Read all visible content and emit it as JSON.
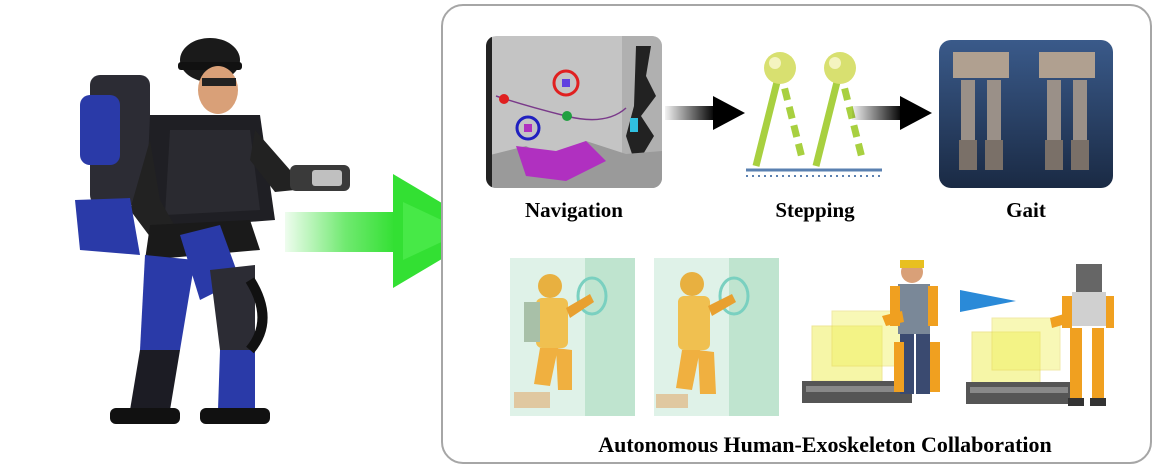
{
  "labels": {
    "navigation": "Navigation",
    "stepping": "Stepping",
    "gait": "Gait",
    "collaboration": "Autonomous Human-Exoskeleton Collaboration"
  },
  "colors": {
    "panel_border": "#a6a6a6",
    "big_arrow": "#33e033",
    "arrow_dark": "#000000",
    "stepping_leg": "#a8d040",
    "stepping_ball": "#d8e070",
    "exo_blue": "#2a3aa8",
    "exo_orange": "#f0a020",
    "collab_arrow": "#2a8ad8"
  },
  "icons": {
    "person": "exoskeleton-wearer-illustration",
    "nav_map": "occupancy-map-illustration",
    "gait": "robot-gait-illustration",
    "pushing": "exoskeleton-pushing-illustration",
    "carrying": "exoskeleton-carrying-illustration"
  }
}
